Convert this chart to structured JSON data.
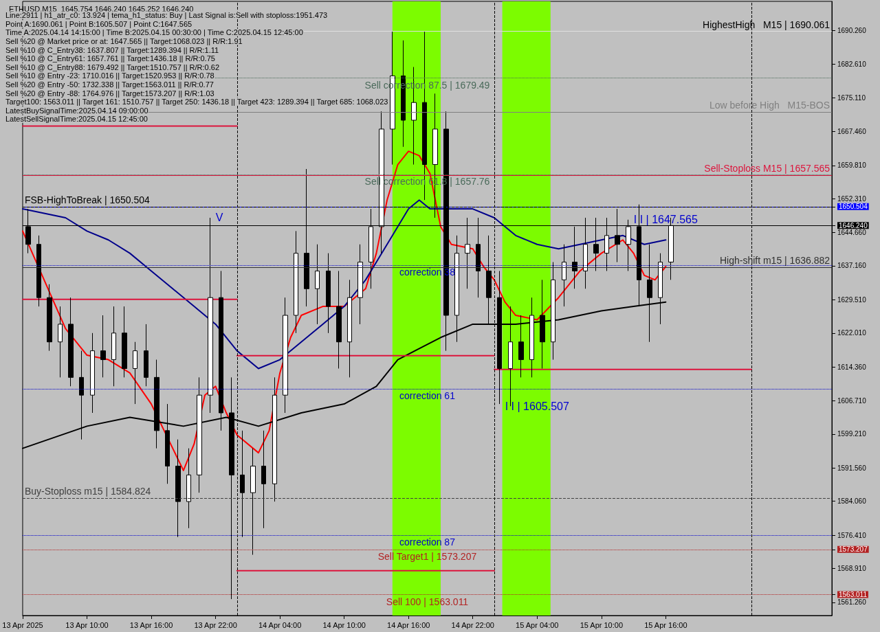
{
  "chart_data": {
    "type": "candlestick",
    "title": "ETHUSD,M15  1645.754 1646.240 1645.252 1646.240",
    "annotations": [
      "Line:2911 | h1_atr_c0: 13.924 | tema_h1_status: Buy | Last Signal is:Sell with stoploss:1951.473",
      "Point A:1690.061 | Point B:1605.507 | Point C:1647.565",
      "Time A:2025.04.14 14:15:00 | Time B:2025.04.15 00:30:00 | Time C:2025.04.15 12:45:00",
      "Sell %20 @ Market price or at: 1647.565 || Target:1068.023 || R/R:1.91",
      "Sell %10 @ C_Entry38: 1637.807 || Target:1289.394 || R/R:1.11",
      "Sell %10 @ C_Entry61: 1657.761 || Target:1436.18 || R/R:0.75",
      "Sell %10 @ C_Entry88: 1679.492 || Target:1510.757 || R/R:0.62",
      "Sell %10 @ Entry -23: 1710.016 || Target:1520.953 || R/R:0.78",
      "Sell %20 @ Entry -50: 1732.338 || Target:1563.011 || R/R:0.77",
      "Sell %20 @ Entry -88: 1764.976 || Target:1573.207 || R/R:1.03",
      "Target100: 1563.011 || Target 161: 1510.757 || Target 250: 1436.18 || Target 423: 1289.394 || Target 685: 1068.023",
      "LatestBuySignalTime:2025.04.14 09:00:00",
      "LatestSellSignalTime:2025.04.15 12:45:00",
      {
        "text": "V",
        "x": "2025-04-13T21:30",
        "y": 1648
      },
      {
        "text": "I I | 1647.565",
        "x": "2025-04-15T12:30",
        "y": 1647.565
      },
      {
        "text": "I I | 1605.507",
        "x": "2025-04-15T00:30",
        "y": 1605.507
      }
    ],
    "color": "#000000",
    "x": [
      "2025-04-13T04:30",
      "2025-04-13T05:30",
      "2025-04-13T06:30",
      "2025-04-13T07:30",
      "2025-04-13T08:30",
      "2025-04-13T09:30",
      "2025-04-13T10:30",
      "2025-04-13T11:30",
      "2025-04-13T12:30",
      "2025-04-13T13:30",
      "2025-04-13T14:30",
      "2025-04-13T15:30",
      "2025-04-13T16:30",
      "2025-04-13T17:30",
      "2025-04-13T18:30",
      "2025-04-13T19:30",
      "2025-04-13T20:30",
      "2025-04-13T21:30",
      "2025-04-13T22:30",
      "2025-04-13T23:30",
      "2025-04-14T00:30",
      "2025-04-14T01:30",
      "2025-04-14T02:30",
      "2025-04-14T03:30",
      "2025-04-14T04:30",
      "2025-04-14T05:30",
      "2025-04-14T06:30",
      "2025-04-14T07:30",
      "2025-04-14T08:30",
      "2025-04-14T09:30",
      "2025-04-14T10:30",
      "2025-04-14T11:30",
      "2025-04-14T12:30",
      "2025-04-14T13:30",
      "2025-04-14T14:30",
      "2025-04-14T15:30",
      "2025-04-14T16:30",
      "2025-04-14T17:30",
      "2025-04-14T18:30",
      "2025-04-14T19:30",
      "2025-04-14T20:30",
      "2025-04-14T21:30",
      "2025-04-14T22:30",
      "2025-04-14T23:30",
      "2025-04-15T00:30",
      "2025-04-15T01:30",
      "2025-04-15T02:30",
      "2025-04-15T03:30",
      "2025-04-15T04:30",
      "2025-04-15T05:30",
      "2025-04-15T06:30",
      "2025-04-15T07:30",
      "2025-04-15T08:30",
      "2025-04-15T09:30",
      "2025-04-15T10:30",
      "2025-04-15T11:30",
      "2025-04-15T12:30",
      "2025-04-15T13:30",
      "2025-04-15T14:30",
      "2025-04-15T15:30",
      "2025-04-15T16:30"
    ],
    "ohlc": [
      [
        1646,
        1650,
        1640,
        1642
      ],
      [
        1642,
        1644,
        1628,
        1630
      ],
      [
        1630,
        1633,
        1618,
        1620
      ],
      [
        1620,
        1628,
        1612,
        1624
      ],
      [
        1624,
        1630,
        1610,
        1612
      ],
      [
        1612,
        1618,
        1598,
        1608
      ],
      [
        1608,
        1622,
        1604,
        1618
      ],
      [
        1618,
        1626,
        1612,
        1616
      ],
      [
        1616,
        1628,
        1610,
        1622
      ],
      [
        1622,
        1628,
        1612,
        1614
      ],
      [
        1614,
        1620,
        1606,
        1618
      ],
      [
        1618,
        1624,
        1610,
        1612
      ],
      [
        1612,
        1616,
        1596,
        1600
      ],
      [
        1600,
        1606,
        1588,
        1592
      ],
      [
        1592,
        1598,
        1576,
        1584
      ],
      [
        1584,
        1596,
        1578,
        1590
      ],
      [
        1590,
        1612,
        1586,
        1608
      ],
      [
        1608,
        1648,
        1604,
        1630
      ],
      [
        1630,
        1636,
        1600,
        1604
      ],
      [
        1604,
        1612,
        1562,
        1590
      ],
      [
        1590,
        1600,
        1576,
        1586
      ],
      [
        1586,
        1596,
        1572,
        1592
      ],
      [
        1592,
        1600,
        1578,
        1588
      ],
      [
        1588,
        1612,
        1584,
        1608
      ],
      [
        1608,
        1630,
        1604,
        1626
      ],
      [
        1626,
        1645,
        1622,
        1640
      ],
      [
        1640,
        1659,
        1628,
        1632
      ],
      [
        1632,
        1642,
        1624,
        1636
      ],
      [
        1636,
        1640,
        1622,
        1628
      ],
      [
        1628,
        1636,
        1614,
        1620
      ],
      [
        1620,
        1634,
        1612,
        1630
      ],
      [
        1630,
        1642,
        1624,
        1638
      ],
      [
        1638,
        1650,
        1632,
        1646
      ],
      [
        1646,
        1672,
        1640,
        1668
      ],
      [
        1668,
        1690,
        1660,
        1680
      ],
      [
        1680,
        1688,
        1664,
        1670
      ],
      [
        1670,
        1682,
        1660,
        1674
      ],
      [
        1674,
        1690,
        1652,
        1660
      ],
      [
        1660,
        1676,
        1648,
        1668
      ],
      [
        1668,
        1672,
        1618,
        1626
      ],
      [
        1626,
        1644,
        1620,
        1640
      ],
      [
        1640,
        1648,
        1632,
        1642
      ],
      [
        1642,
        1648,
        1630,
        1636
      ],
      [
        1636,
        1644,
        1624,
        1630
      ],
      [
        1630,
        1636,
        1606,
        1614
      ],
      [
        1614,
        1628,
        1605.507,
        1620
      ],
      [
        1620,
        1626,
        1612,
        1616
      ],
      [
        1616,
        1630,
        1612,
        1626
      ],
      [
        1626,
        1634,
        1614,
        1620
      ],
      [
        1620,
        1638,
        1616,
        1634
      ],
      [
        1634,
        1642,
        1628,
        1638
      ],
      [
        1638,
        1646,
        1632,
        1636
      ],
      [
        1636,
        1648,
        1632,
        1642
      ],
      [
        1642,
        1648,
        1636,
        1640
      ],
      [
        1640,
        1648,
        1636,
        1644
      ],
      [
        1644,
        1650,
        1638,
        1642
      ],
      [
        1642,
        1647.565,
        1636,
        1646
      ],
      [
        1646,
        1651,
        1628,
        1634
      ],
      [
        1634,
        1642,
        1620,
        1630
      ],
      [
        1630,
        1640,
        1624,
        1638
      ],
      [
        1638,
        1648,
        1634,
        1646.24
      ]
    ],
    "series": [
      {
        "type": "line",
        "color": "#ff0000",
        "x": [
          "2025-04-13T04:00",
          "2025-04-13T06:00",
          "2025-04-13T08:00",
          "2025-04-13T10:00",
          "2025-04-13T12:00",
          "2025-04-13T14:00",
          "2025-04-13T16:00",
          "2025-04-13T18:00",
          "2025-04-13T19:00",
          "2025-04-13T20:00",
          "2025-04-13T21:00",
          "2025-04-13T22:00",
          "2025-04-13T23:00",
          "2025-04-14T00:00",
          "2025-04-14T02:00",
          "2025-04-14T03:00",
          "2025-04-14T04:00",
          "2025-04-14T05:00",
          "2025-04-14T06:00",
          "2025-04-14T08:00",
          "2025-04-14T10:00",
          "2025-04-14T12:00",
          "2025-04-14T13:00",
          "2025-04-14T14:00",
          "2025-04-14T15:00",
          "2025-04-14T16:00",
          "2025-04-14T17:00",
          "2025-04-14T18:00",
          "2025-04-14T19:00",
          "2025-04-14T20:00",
          "2025-04-14T22:00",
          "2025-04-14T23:00",
          "2025-04-15T00:00",
          "2025-04-15T01:00",
          "2025-04-15T02:00",
          "2025-04-15T04:00",
          "2025-04-15T06:00",
          "2025-04-15T08:00",
          "2025-04-15T10:00",
          "2025-04-15T12:00",
          "2025-04-15T13:00",
          "2025-04-15T14:00",
          "2025-04-15T15:00",
          "2025-04-15T16:00"
        ],
        "values": [
          1645,
          1634,
          1623,
          1617,
          1616,
          1613,
          1606,
          1596,
          1591,
          1597,
          1608,
          1610,
          1604,
          1599,
          1595,
          1600,
          1613,
          1621,
          1626,
          1628,
          1628,
          1632,
          1640,
          1652,
          1660,
          1663,
          1662,
          1658,
          1646,
          1642,
          1641,
          1637,
          1634,
          1629,
          1626,
          1625,
          1630,
          1636,
          1640,
          1643,
          1640,
          1635,
          1634,
          1637
        ]
      },
      {
        "type": "line",
        "color": "#00008b",
        "x": [
          "2025-04-13T04:00",
          "2025-04-13T06:00",
          "2025-04-13T08:00",
          "2025-04-13T10:00",
          "2025-04-13T12:00",
          "2025-04-13T14:00",
          "2025-04-13T16:00",
          "2025-04-13T18:00",
          "2025-04-13T20:00",
          "2025-04-13T22:00",
          "2025-04-14T00:00",
          "2025-04-14T02:00",
          "2025-04-14T04:00",
          "2025-04-14T06:00",
          "2025-04-14T08:00",
          "2025-04-14T10:00",
          "2025-04-14T12:00",
          "2025-04-14T14:00",
          "2025-04-14T16:00",
          "2025-04-14T17:00",
          "2025-04-14T18:00",
          "2025-04-14T20:00",
          "2025-04-14T22:00",
          "2025-04-15T00:00",
          "2025-04-15T02:00",
          "2025-04-15T04:00",
          "2025-04-15T06:00",
          "2025-04-15T08:00",
          "2025-04-15T10:00",
          "2025-04-15T12:00",
          "2025-04-15T14:00",
          "2025-04-15T16:00"
        ],
        "values": [
          1650,
          1649,
          1648,
          1645,
          1643,
          1640,
          1636,
          1632,
          1628,
          1624,
          1618,
          1614,
          1616,
          1620,
          1624,
          1628,
          1634,
          1642,
          1650,
          1652,
          1650,
          1650,
          1650,
          1648,
          1644,
          1642,
          1641,
          1642,
          1643,
          1644,
          1642,
          1643
        ]
      },
      {
        "type": "line",
        "color": "#000000",
        "x": [
          "2025-04-13T04:00",
          "2025-04-13T10:00",
          "2025-04-13T14:00",
          "2025-04-13T19:00",
          "2025-04-13T23:00",
          "2025-04-14T02:00",
          "2025-04-14T06:00",
          "2025-04-14T10:00",
          "2025-04-14T13:00",
          "2025-04-14T15:00",
          "2025-04-14T19:00",
          "2025-04-14T22:00",
          "2025-04-15T02:00",
          "2025-04-15T06:00",
          "2025-04-15T10:00",
          "2025-04-15T13:00",
          "2025-04-15T16:00"
        ],
        "values": [
          1596,
          1601,
          1603,
          1601,
          1603,
          1601,
          1604,
          1606,
          1610,
          1616,
          1621,
          1624,
          1624,
          1625,
          1627,
          1628,
          1629
        ]
      },
      {
        "type": "line",
        "color": "#dc143c",
        "x": [
          "2025-04-13T04:00",
          "2025-04-14T00:00"
        ],
        "values": [
          1668.7,
          1668.7
        ]
      },
      {
        "type": "line",
        "color": "#dc143c",
        "x": [
          "2025-04-13T04:00",
          "2025-04-14T00:00"
        ],
        "values": [
          1629.6,
          1629.6
        ]
      },
      {
        "type": "line",
        "color": "#dc143c",
        "x": [
          "2025-04-14T00:00",
          "2025-04-15T00:00"
        ],
        "values": [
          1616.9,
          1616.9
        ]
      },
      {
        "type": "line",
        "color": "#dc143c",
        "x": [
          "2025-04-15T00:00",
          "2025-04-16T00:00"
        ],
        "values": [
          1613.8,
          1613.8
        ]
      },
      {
        "type": "line",
        "color": "#dc143c",
        "x": [
          "2025-04-14T00:00",
          "2025-04-15T00:00"
        ],
        "values": [
          1568.4,
          1568.4
        ]
      }
    ],
    "ref_lines": [
      {
        "axis": "y",
        "value": 1690.061,
        "label": "HighestHigh   M15 | 1690.061",
        "color": "#e0e0e0"
      },
      {
        "axis": "y",
        "value": 1671.8,
        "label": "Low before High   M15-BOS",
        "color": "#808080"
      },
      {
        "axis": "y",
        "value": 1657.565,
        "label": "Sell-Stoploss M15 | 1657.565",
        "color": "#dc143c"
      },
      {
        "axis": "y",
        "value": 1650.504,
        "color": "#0000ff"
      },
      {
        "axis": "y",
        "value": 1650.504,
        "label": "FSB-HighToBreak | 1650.504",
        "color": "#000000",
        "line_style": "dashed"
      },
      {
        "axis": "y",
        "value": 1679.49,
        "label": "Sell correction 87.5 | 1679.49",
        "color": "#4a6a5a",
        "line_style": "dotted"
      },
      {
        "axis": "y",
        "value": 1657.76,
        "label": "Sell correction 61.8 | 1657.76",
        "color": "#4a6a5a",
        "line_style": "dotted"
      },
      {
        "axis": "y",
        "value": 1636.882,
        "label": "High-shift m15 | 1636.882",
        "color": "#303030"
      },
      {
        "axis": "y",
        "value": 1637.3,
        "label": "correction 38",
        "color": "#0000cd",
        "line_style": "dotted"
      },
      {
        "axis": "y",
        "value": 1609.4,
        "label": "correction 61",
        "color": "#0000cd",
        "line_style": "dotted"
      },
      {
        "axis": "y",
        "value": 1576.4,
        "label": "correction 87",
        "color": "#0000cd",
        "line_style": "dotted"
      },
      {
        "axis": "y",
        "value": 1646.24,
        "color": "#000000"
      },
      {
        "axis": "y",
        "value": 1584.824,
        "label": "Buy-Stoploss m15 | 1584.824",
        "color": "#404040",
        "line_style": "dashed"
      },
      {
        "axis": "y",
        "value": 1573.207,
        "label": "Sell Target1 | 1573.207",
        "color": "#b22222",
        "line_style": "dotted"
      },
      {
        "axis": "y",
        "value": 1563.011,
        "label": "Sell 100 | 1563.011",
        "color": "#b22222",
        "line_style": "dotted"
      },
      {
        "axis": "x",
        "value": "2025-04-14T00:00",
        "color": "#000000",
        "line_style": "dashed"
      },
      {
        "axis": "x",
        "value": "2025-04-15T00:00",
        "color": "#000000",
        "line_style": "dashed"
      },
      {
        "axis": "x",
        "value": "2025-04-16T00:00",
        "color": "#000000",
        "line_style": "dashed"
      }
    ],
    "bands": [
      {
        "axis": "x",
        "from": "2025-04-14T14:30",
        "to": "2025-04-14T19:00",
        "color": "#7cfc00"
      },
      {
        "axis": "x",
        "from": "2025-04-15T00:45",
        "to": "2025-04-15T05:15",
        "color": "#7cfc00"
      }
    ],
    "xlim": [
      "2025-04-13T04:00",
      "2025-04-16T07:30"
    ],
    "xticks": [
      {
        "value": "2025-04-13T04:00",
        "label": "13 Apr 2025"
      },
      {
        "value": "2025-04-13T10:00",
        "label": "13 Apr 10:00"
      },
      {
        "value": "2025-04-13T16:00",
        "label": "13 Apr 16:00"
      },
      {
        "value": "2025-04-13T22:00",
        "label": "13 Apr 22:00"
      },
      {
        "value": "2025-04-14T04:00",
        "label": "14 Apr 04:00"
      },
      {
        "value": "2025-04-14T10:00",
        "label": "14 Apr 10:00"
      },
      {
        "value": "2025-04-14T16:00",
        "label": "14 Apr 16:00"
      },
      {
        "value": "2025-04-14T22:00",
        "label": "14 Apr 22:00"
      },
      {
        "value": "2025-04-15T04:00",
        "label": "15 Apr 04:00"
      },
      {
        "value": "2025-04-15T10:00",
        "label": "15 Apr 10:00"
      },
      {
        "value": "2025-04-15T16:00",
        "label": "15 Apr 16:00"
      }
    ],
    "ylim": [
      1558.3,
      1696.8
    ],
    "yticks": [
      {
        "value": 1561.26,
        "label": "1561.260"
      },
      {
        "value": 1563.011,
        "label": "1563.011"
      },
      {
        "value": 1568.91,
        "label": "1568.910"
      },
      {
        "value": 1573.207,
        "label": "1573.207"
      },
      {
        "value": 1576.41,
        "label": "1576.410"
      },
      {
        "value": 1584.06,
        "label": "1584.060"
      },
      {
        "value": 1591.56,
        "label": "1591.560"
      },
      {
        "value": 1599.21,
        "label": "1599.210"
      },
      {
        "value": 1606.71,
        "label": "1606.710"
      },
      {
        "value": 1614.36,
        "label": "1614.360"
      },
      {
        "value": 1622.01,
        "label": "1622.010"
      },
      {
        "value": 1629.51,
        "label": "1629.510"
      },
      {
        "value": 1637.16,
        "label": "1637.160"
      },
      {
        "value": 1644.66,
        "label": "1644.660"
      },
      {
        "value": 1646.24,
        "label": "1646.240"
      },
      {
        "value": 1650.504,
        "label": "1650.504"
      },
      {
        "value": 1652.31,
        "label": "1652.310"
      },
      {
        "value": 1659.81,
        "label": "1659.810"
      },
      {
        "value": 1667.46,
        "label": "1667.460"
      },
      {
        "value": 1675.11,
        "label": "1675.110"
      },
      {
        "value": 1682.61,
        "label": "1682.610"
      },
      {
        "value": 1690.26,
        "label": "1690.260"
      }
    ]
  }
}
